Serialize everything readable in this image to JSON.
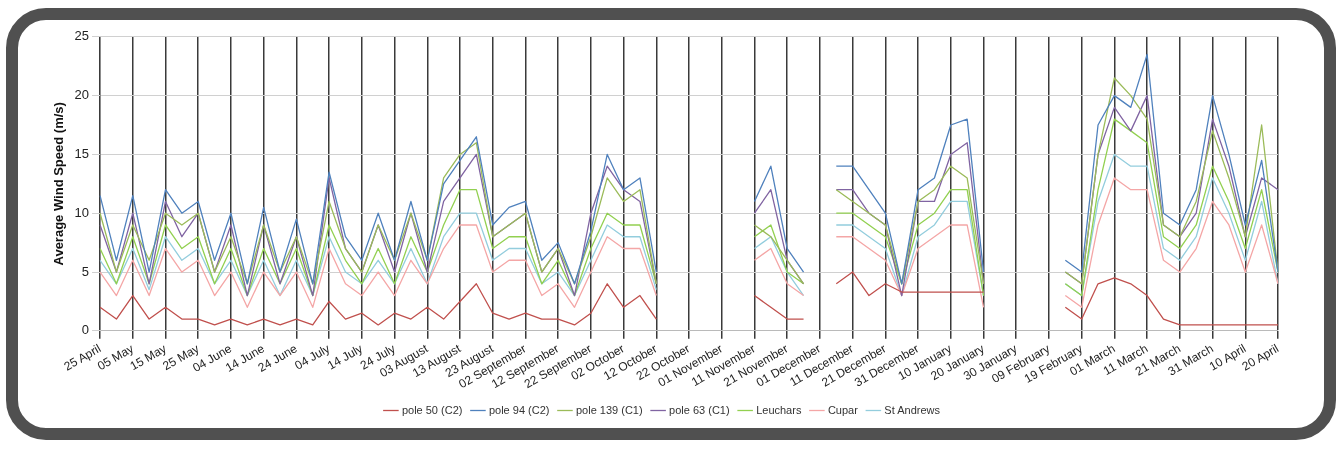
{
  "chart_data": {
    "type": "line",
    "ylabel": "Average Wind Speed (m/s)",
    "categories": [
      "25 April",
      null,
      "05 May",
      null,
      "15 May",
      null,
      "25 May",
      null,
      "04 June",
      null,
      "14 June",
      null,
      "24 June",
      null,
      "04 July",
      null,
      "14 July",
      null,
      "24 July",
      null,
      "03 August",
      null,
      "13 August",
      null,
      "23 August",
      null,
      "02 September",
      null,
      "12 September",
      null,
      "22 September",
      null,
      "02 October",
      null,
      "12 October",
      null,
      "22 October",
      null,
      "01 November",
      null,
      "11 November",
      null,
      "21 November",
      null,
      "01 December",
      null,
      "11 December",
      null,
      "21 December",
      null,
      "31 December",
      null,
      "10 January",
      null,
      "20 January",
      null,
      "30 January",
      null,
      "09 February",
      null,
      "19 February",
      null,
      "01 March",
      null,
      "11 March",
      null,
      "21 March",
      null,
      "31 March",
      null,
      "10 April",
      null,
      "20 April"
    ],
    "ylim": [
      0,
      25
    ],
    "yticks": [
      0,
      5,
      10,
      15,
      20,
      25
    ],
    "grid": true,
    "legend": "bottom",
    "marker": "none",
    "line_style": "solid",
    "series": [
      {
        "name": "St Andrews",
        "color": "#93cddd",
        "values": [
          6,
          4,
          7,
          3.5,
          8,
          6,
          7,
          4,
          6,
          3,
          6,
          3,
          6,
          3,
          8,
          5,
          4,
          6,
          4,
          7,
          4,
          8,
          10,
          10,
          6,
          7,
          7,
          4,
          5,
          3,
          6,
          9,
          8,
          8,
          3.5,
          null,
          null,
          null,
          null,
          null,
          7,
          8,
          5,
          3,
          null,
          9,
          9,
          8,
          7,
          3,
          8,
          9,
          11,
          11,
          3,
          null,
          null,
          null,
          null,
          4,
          3,
          11,
          15,
          14,
          14,
          7,
          6,
          8,
          13,
          10,
          6,
          11,
          4
        ]
      },
      {
        "name": "Cupar",
        "color": "#f4a6a6",
        "values": [
          5,
          3,
          6,
          3,
          7,
          5,
          6,
          3,
          5,
          2,
          5,
          3,
          5,
          2,
          7,
          4,
          3,
          5,
          3,
          6,
          4,
          7,
          9,
          9,
          5,
          6,
          6,
          3,
          4,
          2,
          5,
          8,
          7,
          7,
          3,
          null,
          null,
          null,
          null,
          null,
          6,
          7,
          4,
          3,
          null,
          8,
          8,
          7,
          6,
          3,
          7,
          8,
          9,
          9,
          2,
          null,
          null,
          null,
          null,
          3,
          2,
          9,
          13,
          12,
          12,
          6,
          5,
          7,
          11,
          9,
          5,
          9,
          4
        ]
      },
      {
        "name": "Leuchars",
        "color": "#92d050",
        "values": [
          7,
          4,
          8,
          4,
          9,
          7,
          8,
          4,
          7,
          3,
          7,
          4,
          7,
          3,
          9,
          6,
          4,
          7,
          4,
          8,
          5,
          9,
          12,
          12,
          7,
          8,
          8,
          4,
          6,
          3,
          7,
          10,
          9,
          9,
          4,
          null,
          null,
          null,
          null,
          null,
          8,
          9,
          5,
          4,
          null,
          10,
          10,
          9,
          8,
          4,
          9,
          10,
          12,
          12,
          3,
          null,
          null,
          null,
          null,
          4,
          3,
          12,
          18,
          17,
          16,
          8,
          7,
          9,
          14,
          11,
          7,
          12,
          5
        ]
      },
      {
        "name": "pole 63 (C1)",
        "color": "#8064a2",
        "values": [
          9,
          5,
          10,
          4,
          11,
          8,
          10,
          5,
          9,
          3,
          9,
          4,
          8,
          3,
          13,
          7,
          5,
          9,
          5,
          10,
          5,
          11,
          13,
          15,
          8,
          9,
          10,
          5,
          7,
          3,
          10,
          14,
          12,
          11,
          4,
          null,
          null,
          null,
          null,
          null,
          10,
          12,
          6,
          4,
          null,
          12,
          12,
          10,
          9,
          3,
          11,
          11,
          15,
          16,
          4,
          null,
          null,
          null,
          null,
          5,
          4,
          15,
          19,
          17,
          20,
          9,
          8,
          10,
          18,
          14,
          8,
          13,
          12
        ]
      },
      {
        "name": "pole 139 (C1)",
        "color": "#9bbb59",
        "values": [
          10,
          5,
          9,
          6,
          10,
          9,
          10,
          5,
          8,
          4,
          9,
          5,
          8,
          4,
          11,
          7,
          5,
          9,
          6,
          10,
          6,
          13,
          15,
          16,
          8,
          9,
          10,
          5,
          7,
          4,
          8,
          13,
          11,
          12,
          4,
          null,
          null,
          null,
          null,
          null,
          9,
          8,
          6,
          4,
          null,
          12,
          11,
          10,
          9,
          4,
          11,
          12,
          14,
          13,
          4,
          null,
          null,
          null,
          null,
          5,
          4,
          15,
          21.5,
          20,
          18,
          9,
          8,
          11,
          17,
          13,
          8,
          17.5,
          5
        ]
      },
      {
        "name": "pole 50 (C2)",
        "color": "#c0504d",
        "values": [
          2,
          1,
          3,
          1,
          2,
          1,
          1,
          0.5,
          1,
          0.5,
          1,
          0.5,
          1,
          0.5,
          2.5,
          1,
          1.5,
          0.5,
          1.5,
          1,
          2,
          1,
          2.5,
          4,
          1.5,
          1,
          1.5,
          1,
          1,
          0.5,
          1.5,
          4,
          2,
          3,
          1,
          null,
          null,
          null,
          null,
          null,
          3,
          2,
          1,
          1,
          null,
          4,
          5,
          3,
          4,
          3.3,
          3.3,
          3.3,
          3.3,
          3.3,
          3.3,
          null,
          null,
          null,
          null,
          2,
          1,
          4,
          4.5,
          4,
          3,
          1,
          0.5,
          0.5,
          0.5,
          0.5,
          0.5,
          0.5,
          0.5
        ]
      },
      {
        "name": "pole 94 (C2)",
        "color": "#4f81bd",
        "values": [
          11.5,
          6,
          11.5,
          5,
          12,
          10,
          11,
          6,
          10,
          4,
          10.5,
          5,
          9.5,
          4,
          13.5,
          8,
          6,
          10,
          6,
          11,
          6,
          12.5,
          14.5,
          16.5,
          9,
          10.5,
          11,
          6,
          7.5,
          4,
          8.5,
          15,
          12,
          13,
          5,
          null,
          null,
          null,
          null,
          null,
          11,
          14,
          7,
          5,
          null,
          14,
          14,
          12,
          10,
          4,
          12,
          13,
          17.5,
          18,
          5,
          null,
          null,
          null,
          null,
          6,
          5,
          17.5,
          20,
          19,
          23.5,
          10,
          9,
          12,
          20,
          15,
          9,
          14.5,
          5
        ]
      }
    ]
  }
}
